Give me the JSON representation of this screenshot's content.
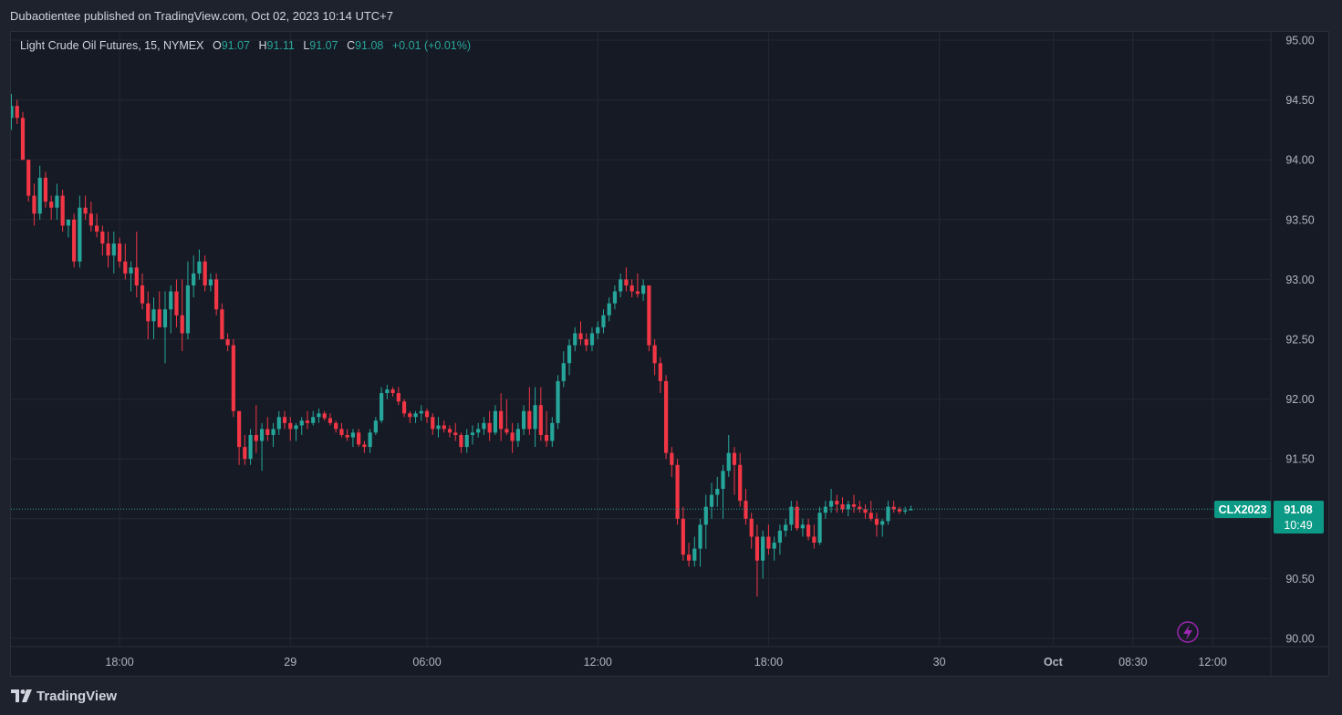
{
  "header": {
    "published": "Dubaotientee published on TradingView.com, Oct 02, 2023 10:14 UTC+7"
  },
  "legend": {
    "symbol": "Light Crude Oil Futures, 15, NYMEX",
    "o_label": "O",
    "o_value": "91.07",
    "h_label": "H",
    "h_value": "91.11",
    "l_label": "L",
    "l_value": "91.07",
    "c_label": "C",
    "c_value": "91.08",
    "change": "+0.01 (+0.01%)"
  },
  "price_badge": {
    "symbol": "CLX2023",
    "price": "91.08",
    "countdown": "10:49"
  },
  "footer": {
    "brand": "TradingView"
  },
  "colors": {
    "up": "#26a69a",
    "down": "#f23645",
    "background": "#161a25",
    "grid": "#242833",
    "axis_text": "#b2b5be"
  },
  "chart_data": {
    "type": "candlestick",
    "timeframe": "15",
    "y_ticks": [
      "95.00",
      "94.50",
      "94.00",
      "93.50",
      "93.00",
      "92.50",
      "92.00",
      "91.50",
      "91.00",
      "90.50",
      "90.00"
    ],
    "ylim": [
      90.0,
      95.0
    ],
    "x_ticks": [
      {
        "label": "18:00",
        "idx": 19
      },
      {
        "label": "29",
        "idx": 49
      },
      {
        "label": "06:00",
        "idx": 73
      },
      {
        "label": "12:00",
        "idx": 103
      },
      {
        "label": "18:00",
        "idx": 133
      },
      {
        "label": "30",
        "idx": 163
      },
      {
        "label": "Oct",
        "idx": 183
      },
      {
        "label": "08:30",
        "idx": 197
      },
      {
        "label": "12:00",
        "idx": 211
      }
    ],
    "current_price": 91.08,
    "candles": [
      [
        94.35,
        94.55,
        94.25,
        94.45
      ],
      [
        94.45,
        94.5,
        94.3,
        94.35
      ],
      [
        94.35,
        94.4,
        94.0,
        94.0
      ],
      [
        94.0,
        94.0,
        93.65,
        93.7
      ],
      [
        93.7,
        93.8,
        93.45,
        93.55
      ],
      [
        93.55,
        93.95,
        93.5,
        93.85
      ],
      [
        93.85,
        93.9,
        93.6,
        93.65
      ],
      [
        93.65,
        93.7,
        93.5,
        93.6
      ],
      [
        93.6,
        93.8,
        93.5,
        93.7
      ],
      [
        93.7,
        93.75,
        93.4,
        93.45
      ],
      [
        93.45,
        93.5,
        93.35,
        93.5
      ],
      [
        93.5,
        93.55,
        93.1,
        93.15
      ],
      [
        93.15,
        93.7,
        93.1,
        93.6
      ],
      [
        93.6,
        93.7,
        93.5,
        93.55
      ],
      [
        93.55,
        93.65,
        93.4,
        93.45
      ],
      [
        93.45,
        93.55,
        93.35,
        93.4
      ],
      [
        93.4,
        93.45,
        93.2,
        93.3
      ],
      [
        93.3,
        93.4,
        93.1,
        93.2
      ],
      [
        93.2,
        93.4,
        93.05,
        93.3
      ],
      [
        93.3,
        93.35,
        93.1,
        93.15
      ],
      [
        93.15,
        93.3,
        93.0,
        93.05
      ],
      [
        93.05,
        93.15,
        92.9,
        93.1
      ],
      [
        93.1,
        93.4,
        92.85,
        92.95
      ],
      [
        92.95,
        93.05,
        92.75,
        92.8
      ],
      [
        92.8,
        92.9,
        92.5,
        92.65
      ],
      [
        92.65,
        92.85,
        92.5,
        92.75
      ],
      [
        92.75,
        92.9,
        92.6,
        92.6
      ],
      [
        92.6,
        92.9,
        92.3,
        92.75
      ],
      [
        92.75,
        92.95,
        92.55,
        92.9
      ],
      [
        92.9,
        93.0,
        92.6,
        92.7
      ],
      [
        92.7,
        93.0,
        92.4,
        92.55
      ],
      [
        92.55,
        93.15,
        92.5,
        92.95
      ],
      [
        92.95,
        93.2,
        92.85,
        93.05
      ],
      [
        93.05,
        93.25,
        93.0,
        93.15
      ],
      [
        93.15,
        93.2,
        92.9,
        92.95
      ],
      [
        92.95,
        93.05,
        92.9,
        93.0
      ],
      [
        93.0,
        93.05,
        92.7,
        92.75
      ],
      [
        92.75,
        92.8,
        92.5,
        92.5
      ],
      [
        92.5,
        92.55,
        92.4,
        92.45
      ],
      [
        92.45,
        92.5,
        91.85,
        91.9
      ],
      [
        91.9,
        91.9,
        91.45,
        91.6
      ],
      [
        91.6,
        91.7,
        91.45,
        91.5
      ],
      [
        91.5,
        91.75,
        91.45,
        91.7
      ],
      [
        91.7,
        91.95,
        91.55,
        91.65
      ],
      [
        91.65,
        91.8,
        91.4,
        91.75
      ],
      [
        91.75,
        91.85,
        91.65,
        91.7
      ],
      [
        91.7,
        91.8,
        91.6,
        91.75
      ],
      [
        91.75,
        91.9,
        91.7,
        91.85
      ],
      [
        91.85,
        91.9,
        91.75,
        91.8
      ],
      [
        91.8,
        91.85,
        91.65,
        91.75
      ],
      [
        91.75,
        91.8,
        91.65,
        91.78
      ],
      [
        91.78,
        91.85,
        91.7,
        91.82
      ],
      [
        91.82,
        91.9,
        91.75,
        91.8
      ],
      [
        91.8,
        91.9,
        91.78,
        91.85
      ],
      [
        91.85,
        91.92,
        91.8,
        91.88
      ],
      [
        91.88,
        91.9,
        91.82,
        91.84
      ],
      [
        91.84,
        91.88,
        91.78,
        91.8
      ],
      [
        91.8,
        91.82,
        91.72,
        91.75
      ],
      [
        91.75,
        91.8,
        91.68,
        91.7
      ],
      [
        91.7,
        91.75,
        91.65,
        91.68
      ],
      [
        91.68,
        91.75,
        91.6,
        91.72
      ],
      [
        91.72,
        91.75,
        91.6,
        91.62
      ],
      [
        91.62,
        91.65,
        91.55,
        91.6
      ],
      [
        91.6,
        91.75,
        91.55,
        91.72
      ],
      [
        91.72,
        91.85,
        91.7,
        91.82
      ],
      [
        91.82,
        92.1,
        91.8,
        92.05
      ],
      [
        92.05,
        92.12,
        92.0,
        92.08
      ],
      [
        92.08,
        92.1,
        92.02,
        92.05
      ],
      [
        92.05,
        92.1,
        91.95,
        91.98
      ],
      [
        91.98,
        92.0,
        91.85,
        91.88
      ],
      [
        91.88,
        91.9,
        91.8,
        91.85
      ],
      [
        91.85,
        91.9,
        91.8,
        91.88
      ],
      [
        91.88,
        91.95,
        91.82,
        91.9
      ],
      [
        91.9,
        91.92,
        91.8,
        91.85
      ],
      [
        91.85,
        91.88,
        91.7,
        91.75
      ],
      [
        91.75,
        91.85,
        91.68,
        91.78
      ],
      [
        91.78,
        91.82,
        91.72,
        91.75
      ],
      [
        91.75,
        91.78,
        91.68,
        91.72
      ],
      [
        91.72,
        91.8,
        91.65,
        91.7
      ],
      [
        91.7,
        91.72,
        91.55,
        91.6
      ],
      [
        91.6,
        91.75,
        91.55,
        91.7
      ],
      [
        91.7,
        91.78,
        91.62,
        91.72
      ],
      [
        91.72,
        91.8,
        91.68,
        91.75
      ],
      [
        91.75,
        91.85,
        91.7,
        91.8
      ],
      [
        91.8,
        91.9,
        91.65,
        91.72
      ],
      [
        91.72,
        91.95,
        91.7,
        91.9
      ],
      [
        91.9,
        92.05,
        91.65,
        91.75
      ],
      [
        91.75,
        92.0,
        91.7,
        91.72
      ],
      [
        91.72,
        91.8,
        91.55,
        91.65
      ],
      [
        91.65,
        91.8,
        91.6,
        91.75
      ],
      [
        91.75,
        91.95,
        91.7,
        91.9
      ],
      [
        91.9,
        92.1,
        91.7,
        91.75
      ],
      [
        91.75,
        92.1,
        91.6,
        91.95
      ],
      [
        91.95,
        92.1,
        91.65,
        91.7
      ],
      [
        91.7,
        91.9,
        91.6,
        91.65
      ],
      [
        91.65,
        91.85,
        91.6,
        91.8
      ],
      [
        91.8,
        92.2,
        91.75,
        92.15
      ],
      [
        92.15,
        92.4,
        92.1,
        92.3
      ],
      [
        92.3,
        92.5,
        92.2,
        92.45
      ],
      [
        92.45,
        92.6,
        92.4,
        92.55
      ],
      [
        92.55,
        92.65,
        92.45,
        92.5
      ],
      [
        92.5,
        92.55,
        92.4,
        92.45
      ],
      [
        92.45,
        92.6,
        92.4,
        92.55
      ],
      [
        92.55,
        92.65,
        92.5,
        92.6
      ],
      [
        92.6,
        92.75,
        92.55,
        92.7
      ],
      [
        92.7,
        92.85,
        92.65,
        92.8
      ],
      [
        92.8,
        92.95,
        92.75,
        92.9
      ],
      [
        92.9,
        93.05,
        92.85,
        93.0
      ],
      [
        93.0,
        93.1,
        92.9,
        92.95
      ],
      [
        92.95,
        93.0,
        92.85,
        92.9
      ],
      [
        92.9,
        93.05,
        92.85,
        92.88
      ],
      [
        92.88,
        93.0,
        92.82,
        92.95
      ],
      [
        92.95,
        92.95,
        92.4,
        92.45
      ],
      [
        92.45,
        92.5,
        92.2,
        92.3
      ],
      [
        92.3,
        92.35,
        92.05,
        92.15
      ],
      [
        92.15,
        92.2,
        91.5,
        91.55
      ],
      [
        91.55,
        91.6,
        91.35,
        91.45
      ],
      [
        91.45,
        91.5,
        90.95,
        91.0
      ],
      [
        91.0,
        91.1,
        90.65,
        90.7
      ],
      [
        90.7,
        90.8,
        90.6,
        90.65
      ],
      [
        90.65,
        90.85,
        90.6,
        90.75
      ],
      [
        90.75,
        91.0,
        90.6,
        90.95
      ],
      [
        90.95,
        91.2,
        90.75,
        91.1
      ],
      [
        91.1,
        91.3,
        91.0,
        91.2
      ],
      [
        91.2,
        91.35,
        91.1,
        91.25
      ],
      [
        91.25,
        91.45,
        91.0,
        91.4
      ],
      [
        91.4,
        91.7,
        91.35,
        91.55
      ],
      [
        91.55,
        91.6,
        91.2,
        91.45
      ],
      [
        91.45,
        91.55,
        91.1,
        91.15
      ],
      [
        91.15,
        91.25,
        90.95,
        91.0
      ],
      [
        91.0,
        91.05,
        90.75,
        90.85
      ],
      [
        90.85,
        90.95,
        90.35,
        90.65
      ],
      [
        90.65,
        90.9,
        90.5,
        90.85
      ],
      [
        90.85,
        90.95,
        90.7,
        90.75
      ],
      [
        90.75,
        90.85,
        90.65,
        90.8
      ],
      [
        90.8,
        90.95,
        90.7,
        90.9
      ],
      [
        90.9,
        91.0,
        90.85,
        90.95
      ],
      [
        90.95,
        91.15,
        90.9,
        91.1
      ],
      [
        91.1,
        91.15,
        90.9,
        90.92
      ],
      [
        90.92,
        91.0,
        90.85,
        90.95
      ],
      [
        90.95,
        91.0,
        90.82,
        90.85
      ],
      [
        90.85,
        90.95,
        90.75,
        90.8
      ],
      [
        90.8,
        91.1,
        90.78,
        91.05
      ],
      [
        91.05,
        91.15,
        91.0,
        91.1
      ],
      [
        91.1,
        91.25,
        91.05,
        91.15
      ],
      [
        91.15,
        91.2,
        91.05,
        91.12
      ],
      [
        91.12,
        91.18,
        91.05,
        91.08
      ],
      [
        91.08,
        91.15,
        91.02,
        91.12
      ],
      [
        91.12,
        91.2,
        91.05,
        91.1
      ],
      [
        91.1,
        91.15,
        91.05,
        91.08
      ],
      [
        91.08,
        91.12,
        91.0,
        91.05
      ],
      [
        91.05,
        91.15,
        90.98,
        91.0
      ],
      [
        91.0,
        91.05,
        90.85,
        90.95
      ],
      [
        90.95,
        91.0,
        90.85,
        90.98
      ],
      [
        90.98,
        91.15,
        90.95,
        91.1
      ],
      [
        91.1,
        91.15,
        91.05,
        91.08
      ],
      [
        91.08,
        91.1,
        91.04,
        91.06
      ],
      [
        91.06,
        91.1,
        91.04,
        91.07
      ],
      [
        91.07,
        91.11,
        91.07,
        91.08
      ]
    ]
  }
}
